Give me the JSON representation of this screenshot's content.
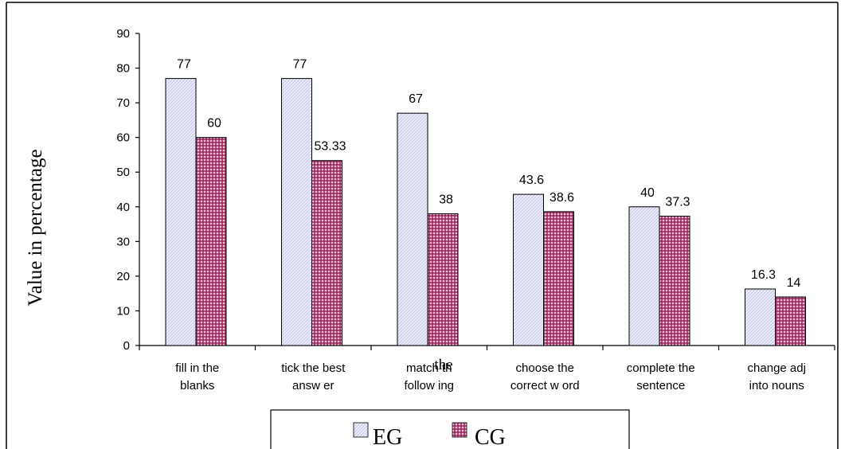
{
  "chart_data": {
    "type": "bar",
    "ylabel": "Value in percentage",
    "ylim": [
      0,
      90
    ],
    "yticks": [
      0,
      10,
      20,
      30,
      40,
      50,
      60,
      70,
      80,
      90
    ],
    "categories": [
      [
        "fill in the",
        "blanks"
      ],
      [
        "tick the best",
        "answ er"
      ],
      [
        "match th",
        "follow ing"
      ],
      [
        "choose the",
        "correct w ord"
      ],
      [
        "complete the",
        "sentence"
      ],
      [
        "change adj",
        "into nouns"
      ]
    ],
    "overlay_text": "the",
    "series": [
      {
        "name": "EG",
        "values": [
          77,
          77,
          67,
          43.6,
          40,
          16.3
        ],
        "labels": [
          "77",
          "77",
          "67",
          "43.6",
          "40",
          "16.3"
        ],
        "color": "#e8eaf6"
      },
      {
        "name": "CG",
        "values": [
          60,
          53.33,
          38,
          38.6,
          37.3,
          14
        ],
        "labels": [
          "60",
          "53.33",
          "38",
          "38.6",
          "37.3",
          "14"
        ],
        "color": "#b8457a"
      }
    ],
    "grid": false,
    "legend_position": "bottom"
  }
}
